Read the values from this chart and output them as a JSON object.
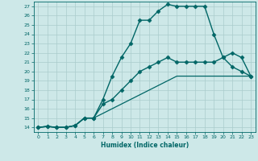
{
  "xlabel": "Humidex (Indice chaleur)",
  "bg_color": "#cde8e8",
  "line_color": "#006666",
  "grid_color": "#aacccc",
  "xlim": [
    -0.5,
    23.5
  ],
  "ylim": [
    13.5,
    27.5
  ],
  "xticks": [
    0,
    1,
    2,
    3,
    4,
    5,
    6,
    7,
    8,
    9,
    10,
    11,
    12,
    13,
    14,
    15,
    16,
    17,
    18,
    19,
    20,
    21,
    22,
    23
  ],
  "yticks": [
    14,
    15,
    16,
    17,
    18,
    19,
    20,
    21,
    22,
    23,
    24,
    25,
    26,
    27
  ],
  "series": [
    {
      "x": [
        0,
        1,
        2,
        3,
        4,
        5,
        6,
        7,
        8,
        9,
        10,
        11,
        12,
        13,
        14,
        15,
        16,
        17,
        18,
        19,
        20,
        21,
        22,
        23
      ],
      "y": [
        14,
        14.1,
        14,
        14,
        14.2,
        15,
        15,
        17,
        19.5,
        21.5,
        23,
        25.5,
        25.5,
        26.5,
        27.2,
        27,
        27,
        27,
        27,
        24,
        21.5,
        20.5,
        20,
        19.5
      ],
      "marker": "D",
      "markersize": 2.5,
      "linewidth": 1.0
    },
    {
      "x": [
        0,
        1,
        2,
        3,
        4,
        5,
        6,
        7,
        8,
        9,
        10,
        11,
        12,
        13,
        14,
        15,
        16,
        17,
        18,
        19,
        20,
        21,
        22,
        23
      ],
      "y": [
        14,
        14.1,
        14,
        14,
        14.2,
        15,
        15,
        16.5,
        17,
        18,
        19,
        20,
        20.5,
        21,
        21.5,
        21,
        21,
        21,
        21,
        21,
        21.5,
        22,
        21.5,
        19.5
      ],
      "marker": "D",
      "markersize": 2.5,
      "linewidth": 1.0
    },
    {
      "x": [
        0,
        1,
        2,
        3,
        4,
        5,
        6,
        7,
        8,
        9,
        10,
        11,
        12,
        13,
        14,
        15,
        16,
        17,
        18,
        19,
        20,
        21,
        22,
        23
      ],
      "y": [
        14,
        14.1,
        14,
        14,
        14.2,
        15,
        15,
        15.5,
        16,
        16.5,
        17,
        17.5,
        18,
        18.5,
        19,
        19.5,
        19.5,
        19.5,
        19.5,
        19.5,
        19.5,
        19.5,
        19.5,
        19.5
      ],
      "marker": null,
      "markersize": 0,
      "linewidth": 0.9
    }
  ]
}
